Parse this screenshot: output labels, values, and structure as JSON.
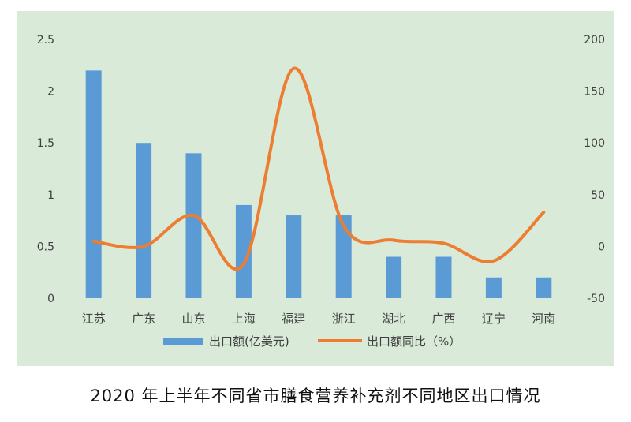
{
  "caption": "2020 年上半年不同省市膳食营养补充剂不同地区出口情况",
  "chart_data": {
    "type": "bar",
    "title": "",
    "categories": [
      "江苏",
      "广东",
      "山东",
      "上海",
      "福建",
      "浙江",
      "湖北",
      "广西",
      "辽宁",
      "河南"
    ],
    "series": [
      {
        "name": "出口额(亿美元)",
        "type": "bar",
        "axis": "left",
        "color": "#5b9bd5",
        "values": [
          2.2,
          1.5,
          1.4,
          0.9,
          0.8,
          0.8,
          0.4,
          0.4,
          0.2,
          0.2
        ]
      },
      {
        "name": "出口额同比（%）",
        "type": "line",
        "axis": "right",
        "smooth": true,
        "color": "#ed7d31",
        "values": [
          5,
          0,
          30,
          -17,
          172,
          20,
          6,
          3,
          -14,
          33
        ]
      }
    ],
    "y_left": {
      "min": 0,
      "max": 2.5,
      "ticks": [
        "0",
        "0.5",
        "1",
        "1.5",
        "2",
        "2.5"
      ]
    },
    "y_right": {
      "min": -50,
      "max": 200,
      "ticks": [
        "-50",
        "0",
        "50",
        "100",
        "150",
        "200"
      ]
    },
    "grid": false,
    "legend": "bottom",
    "background": "#d9ead9"
  }
}
